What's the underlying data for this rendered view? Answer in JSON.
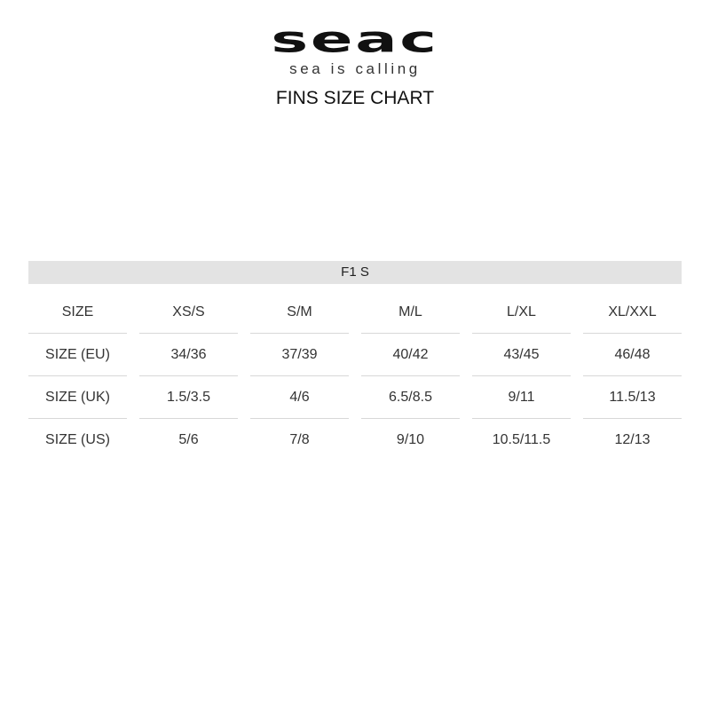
{
  "logo": {
    "word": "seac",
    "tagline": "sea is calling"
  },
  "title": "FINS SIZE CHART",
  "table": {
    "model": "F1 S",
    "rows": [
      [
        "SIZE",
        "XS/S",
        "S/M",
        "M/L",
        "L/XL",
        "XL/XXL"
      ],
      [
        "SIZE (EU)",
        "34/36",
        "37/39",
        "40/42",
        "43/45",
        "46/48"
      ],
      [
        "SIZE (UK)",
        "1.5/3.5",
        "4/6",
        "6.5/8.5",
        "9/11",
        "11.5/13"
      ],
      [
        "SIZE (US)",
        "5/6",
        "7/8",
        "9/10",
        "10.5/11.5",
        "12/13"
      ]
    ]
  }
}
